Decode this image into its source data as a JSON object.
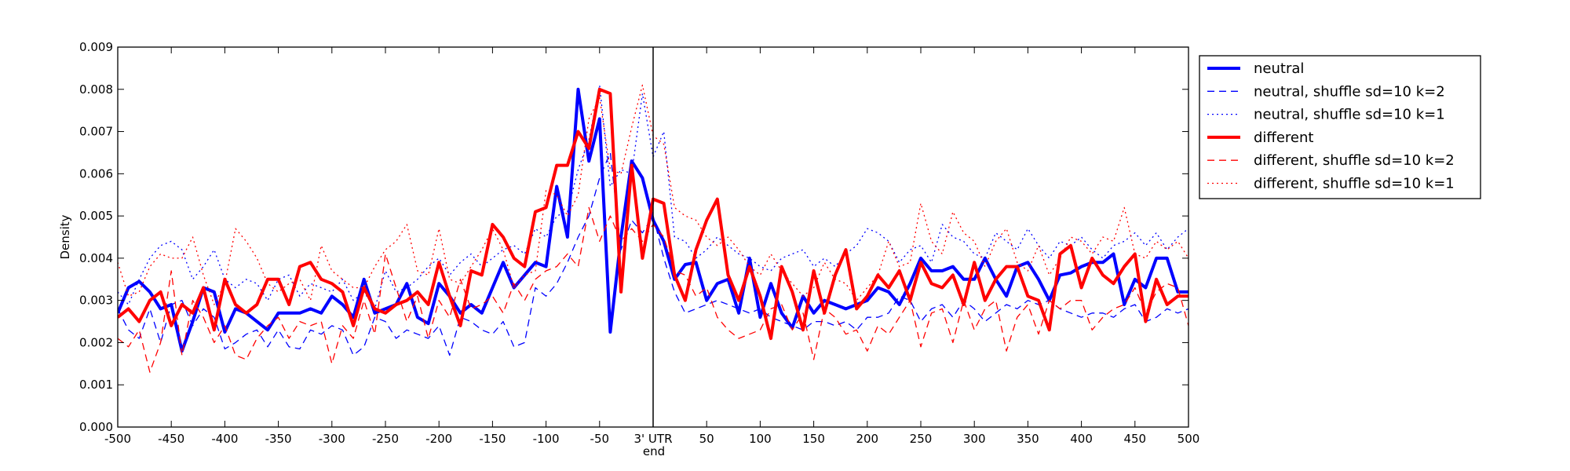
{
  "chart_data": {
    "type": "line",
    "xlabel": "end",
    "ylabel": "Density",
    "xlim": [
      -500,
      500
    ],
    "ylim": [
      0,
      0.009
    ],
    "x_ticks": [
      -500,
      -450,
      -400,
      -350,
      -300,
      -250,
      -200,
      -150,
      -100,
      -50,
      0,
      50,
      100,
      150,
      200,
      250,
      300,
      350,
      400,
      450,
      500
    ],
    "x_tick_labels": [
      "-500",
      "-450",
      "-400",
      "-350",
      "-300",
      "-250",
      "-200",
      "-150",
      "-100",
      "-50",
      "3' UTR",
      "50",
      "100",
      "150",
      "200",
      "250",
      "300",
      "350",
      "400",
      "450",
      "500"
    ],
    "y_ticks": [
      0,
      0.001,
      0.002,
      0.003,
      0.004,
      0.005,
      0.006,
      0.007,
      0.008,
      0.009
    ],
    "y_tick_labels": [
      "0.000",
      "0.001",
      "0.002",
      "0.003",
      "0.004",
      "0.005",
      "0.006",
      "0.007",
      "0.008",
      "0.009"
    ],
    "vertical_line_x": 0,
    "grid": false,
    "legend_position": "outside right, top",
    "x": [
      -500,
      -490,
      -480,
      -470,
      -460,
      -450,
      -440,
      -430,
      -420,
      -410,
      -400,
      -390,
      -380,
      -370,
      -360,
      -350,
      -340,
      -330,
      -320,
      -310,
      -300,
      -290,
      -280,
      -270,
      -260,
      -250,
      -240,
      -230,
      -220,
      -210,
      -200,
      -190,
      -180,
      -170,
      -160,
      -150,
      -140,
      -130,
      -120,
      -110,
      -100,
      -90,
      -80,
      -70,
      -60,
      -50,
      -40,
      -30,
      -20,
      -10,
      0,
      10,
      20,
      30,
      40,
      50,
      60,
      70,
      80,
      90,
      100,
      110,
      120,
      130,
      140,
      150,
      160,
      170,
      180,
      190,
      200,
      210,
      220,
      230,
      240,
      250,
      260,
      270,
      280,
      290,
      300,
      310,
      320,
      330,
      340,
      350,
      360,
      370,
      380,
      390,
      400,
      410,
      420,
      430,
      440,
      450,
      460,
      470,
      480,
      490,
      500
    ],
    "series": [
      {
        "name": "neutral",
        "color": "#0000ff",
        "style": "solid",
        "width": 4,
        "values": [
          0.0027,
          0.0033,
          0.00345,
          0.0032,
          0.0028,
          0.0029,
          0.0018,
          0.0025,
          0.0033,
          0.0032,
          0.00225,
          0.0028,
          0.0027,
          0.0025,
          0.0023,
          0.0027,
          0.0027,
          0.0027,
          0.0028,
          0.0027,
          0.0031,
          0.0029,
          0.0026,
          0.0035,
          0.0027,
          0.0028,
          0.0029,
          0.0034,
          0.0026,
          0.00245,
          0.0034,
          0.0031,
          0.0027,
          0.0029,
          0.0027,
          0.0033,
          0.0039,
          0.0033,
          0.0036,
          0.0039,
          0.0038,
          0.0057,
          0.0045,
          0.008,
          0.0063,
          0.0073,
          0.00225,
          0.0045,
          0.0063,
          0.0059,
          0.0049,
          0.0044,
          0.0035,
          0.00385,
          0.0039,
          0.003,
          0.0034,
          0.0035,
          0.0027,
          0.004,
          0.0026,
          0.0034,
          0.0027,
          0.00235,
          0.0031,
          0.0027,
          0.003,
          0.0029,
          0.0028,
          0.0029,
          0.003,
          0.0033,
          0.0032,
          0.0029,
          0.0034,
          0.004,
          0.0037,
          0.0037,
          0.0038,
          0.0035,
          0.0035,
          0.004,
          0.0035,
          0.0031,
          0.0038,
          0.0039,
          0.0035,
          0.003,
          0.0036,
          0.00365,
          0.0038,
          0.0039,
          0.0039,
          0.0041,
          0.0029,
          0.0035,
          0.0033,
          0.004,
          0.004,
          0.0032,
          0.0032
        ]
      },
      {
        "name": "neutral, shuffle sd=10 k=2",
        "color": "#0000ff",
        "style": "dashed",
        "width": 1.3,
        "values": [
          0.0028,
          0.0023,
          0.0021,
          0.0028,
          0.002,
          0.0029,
          0.003,
          0.0024,
          0.0028,
          0.0026,
          0.00185,
          0.002,
          0.0022,
          0.0023,
          0.0019,
          0.0023,
          0.0019,
          0.00185,
          0.0023,
          0.0022,
          0.0024,
          0.0023,
          0.0017,
          0.0019,
          0.0026,
          0.0025,
          0.0021,
          0.0023,
          0.0022,
          0.0021,
          0.0024,
          0.0017,
          0.0026,
          0.0025,
          0.0023,
          0.0022,
          0.0025,
          0.0019,
          0.002,
          0.0033,
          0.0031,
          0.0034,
          0.0039,
          0.0045,
          0.005,
          0.0059,
          0.0065,
          0.0042,
          0.0049,
          0.0046,
          0.005,
          0.004,
          0.0032,
          0.0027,
          0.0028,
          0.0029,
          0.003,
          0.0029,
          0.0028,
          0.0027,
          0.0028,
          0.0026,
          0.0025,
          0.0024,
          0.0023,
          0.0025,
          0.0025,
          0.0024,
          0.0025,
          0.0023,
          0.0026,
          0.0026,
          0.0027,
          0.0031,
          0.003,
          0.0025,
          0.0028,
          0.0029,
          0.0026,
          0.003,
          0.0028,
          0.0025,
          0.0027,
          0.0029,
          0.0028,
          0.003,
          0.0029,
          0.003,
          0.0028,
          0.0027,
          0.0026,
          0.0027,
          0.0027,
          0.0026,
          0.0028,
          0.0029,
          0.0025,
          0.0026,
          0.0028,
          0.0027,
          0.0028
        ]
      },
      {
        "name": "neutral, shuffle sd=10 k=1",
        "color": "#0000ff",
        "style": "dotted",
        "width": 1.3,
        "values": [
          0.0032,
          0.0029,
          0.0035,
          0.004,
          0.0043,
          0.0044,
          0.0042,
          0.0035,
          0.0038,
          0.0042,
          0.0035,
          0.0033,
          0.0035,
          0.0034,
          0.003,
          0.0035,
          0.0036,
          0.0031,
          0.0034,
          0.0033,
          0.0032,
          0.0035,
          0.003,
          0.0032,
          0.0028,
          0.0037,
          0.0032,
          0.0033,
          0.0035,
          0.0038,
          0.004,
          0.0036,
          0.0039,
          0.0041,
          0.0038,
          0.004,
          0.0042,
          0.0043,
          0.0041,
          0.0047,
          0.0045,
          0.005,
          0.0051,
          0.0061,
          0.0068,
          0.0081,
          0.0057,
          0.0061,
          0.006,
          0.0079,
          0.0064,
          0.007,
          0.0045,
          0.0044,
          0.004,
          0.0042,
          0.0045,
          0.0043,
          0.0041,
          0.004,
          0.0038,
          0.0037,
          0.004,
          0.0041,
          0.0042,
          0.0038,
          0.004,
          0.0038,
          0.0041,
          0.0043,
          0.0047,
          0.0046,
          0.0044,
          0.0039,
          0.0042,
          0.0043,
          0.0039,
          0.0048,
          0.0045,
          0.0044,
          0.0041,
          0.004,
          0.0046,
          0.0044,
          0.0042,
          0.0047,
          0.0043,
          0.004,
          0.0044,
          0.0043,
          0.0045,
          0.0042,
          0.004,
          0.0043,
          0.0044,
          0.0046,
          0.0043,
          0.0046,
          0.0042,
          0.0045,
          0.0047
        ]
      },
      {
        "name": "different",
        "color": "#ff0000",
        "style": "solid",
        "width": 4,
        "values": [
          0.0026,
          0.0028,
          0.0025,
          0.003,
          0.0032,
          0.0024,
          0.0029,
          0.0027,
          0.0033,
          0.0023,
          0.0035,
          0.0029,
          0.0027,
          0.0029,
          0.0035,
          0.0035,
          0.0029,
          0.0038,
          0.0039,
          0.0035,
          0.0034,
          0.0032,
          0.0024,
          0.0033,
          0.0028,
          0.0027,
          0.0029,
          0.003,
          0.0032,
          0.0029,
          0.0039,
          0.0031,
          0.0024,
          0.0037,
          0.0036,
          0.0048,
          0.0045,
          0.004,
          0.0038,
          0.0051,
          0.0052,
          0.0062,
          0.0062,
          0.007,
          0.0066,
          0.008,
          0.0079,
          0.0032,
          0.0062,
          0.004,
          0.0054,
          0.0053,
          0.0036,
          0.003,
          0.0042,
          0.0049,
          0.0054,
          0.0036,
          0.003,
          0.0038,
          0.0031,
          0.0021,
          0.0038,
          0.0032,
          0.0023,
          0.0037,
          0.0027,
          0.0036,
          0.0042,
          0.0028,
          0.0031,
          0.0036,
          0.0033,
          0.0037,
          0.003,
          0.0039,
          0.0034,
          0.0033,
          0.0036,
          0.0029,
          0.0039,
          0.003,
          0.0035,
          0.0038,
          0.0038,
          0.0031,
          0.003,
          0.0023,
          0.0041,
          0.0043,
          0.0033,
          0.004,
          0.0036,
          0.0034,
          0.0038,
          0.0041,
          0.0025,
          0.0035,
          0.0029,
          0.0031,
          0.0031
        ]
      },
      {
        "name": "different, shuffle sd=10 k=2",
        "color": "#ff0000",
        "style": "dashed",
        "width": 1.3,
        "values": [
          0.0021,
          0.0019,
          0.0023,
          0.0013,
          0.002,
          0.0037,
          0.0017,
          0.003,
          0.0026,
          0.002,
          0.0024,
          0.0017,
          0.0016,
          0.0021,
          0.0024,
          0.0026,
          0.0021,
          0.0025,
          0.0024,
          0.0025,
          0.0015,
          0.0024,
          0.0021,
          0.003,
          0.0022,
          0.0041,
          0.0033,
          0.0025,
          0.0031,
          0.0021,
          0.003,
          0.0026,
          0.0035,
          0.0028,
          0.0029,
          0.0031,
          0.0027,
          0.0034,
          0.003,
          0.0035,
          0.0037,
          0.0038,
          0.0041,
          0.0038,
          0.0052,
          0.0044,
          0.005,
          0.0044,
          0.0047,
          0.0044,
          0.0048,
          0.0045,
          0.0037,
          0.0036,
          0.0031,
          0.0033,
          0.0026,
          0.0023,
          0.0021,
          0.0022,
          0.0023,
          0.0028,
          0.0029,
          0.0023,
          0.0027,
          0.0016,
          0.0028,
          0.0026,
          0.0022,
          0.0023,
          0.0018,
          0.0024,
          0.0022,
          0.0026,
          0.003,
          0.0019,
          0.0027,
          0.0028,
          0.002,
          0.003,
          0.0023,
          0.0028,
          0.003,
          0.0018,
          0.0026,
          0.0029,
          0.0022,
          0.003,
          0.0028,
          0.003,
          0.003,
          0.0023,
          0.0026,
          0.0028,
          0.0029,
          0.0033,
          0.0027,
          0.0032,
          0.0034,
          0.0033,
          0.0024
        ]
      },
      {
        "name": "different, shuffle sd=10 k=1",
        "color": "#ff0000",
        "style": "dotted",
        "width": 1.3,
        "values": [
          0.0039,
          0.0031,
          0.0032,
          0.0038,
          0.0041,
          0.004,
          0.004,
          0.0045,
          0.0036,
          0.0029,
          0.0034,
          0.0047,
          0.0044,
          0.004,
          0.0034,
          0.0032,
          0.0034,
          0.0035,
          0.003,
          0.0043,
          0.0037,
          0.0035,
          0.0033,
          0.0033,
          0.0038,
          0.0042,
          0.0044,
          0.0048,
          0.0037,
          0.0036,
          0.0047,
          0.0035,
          0.0034,
          0.0038,
          0.0042,
          0.0047,
          0.0042,
          0.0033,
          0.0036,
          0.0037,
          0.0056,
          0.0055,
          0.005,
          0.0055,
          0.0073,
          0.0078,
          0.0061,
          0.006,
          0.0071,
          0.0081,
          0.0069,
          0.0067,
          0.0052,
          0.005,
          0.0049,
          0.0045,
          0.0043,
          0.0045,
          0.0042,
          0.0038,
          0.0036,
          0.0041,
          0.0037,
          0.0034,
          0.0031,
          0.0033,
          0.0039,
          0.0035,
          0.0034,
          0.003,
          0.0033,
          0.0036,
          0.0044,
          0.0038,
          0.0039,
          0.0053,
          0.0044,
          0.0041,
          0.0051,
          0.0046,
          0.0044,
          0.0038,
          0.0044,
          0.0047,
          0.0039,
          0.0037,
          0.0043,
          0.0036,
          0.004,
          0.0045,
          0.0044,
          0.0041,
          0.0045,
          0.0044,
          0.0052,
          0.0041,
          0.004,
          0.0044,
          0.0042,
          0.0044,
          0.004
        ]
      }
    ]
  }
}
